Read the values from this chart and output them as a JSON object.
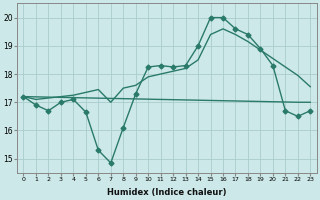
{
  "bg_color": "#cce8e8",
  "grid_color": "#aacccc",
  "line_color": "#2a7a6a",
  "xlabel": "Humidex (Indice chaleur)",
  "xlim": [
    -0.5,
    23.5
  ],
  "ylim": [
    14.5,
    20.5
  ],
  "yticks": [
    15,
    16,
    17,
    18,
    19,
    20
  ],
  "xticks": [
    0,
    1,
    2,
    3,
    4,
    5,
    6,
    7,
    8,
    9,
    10,
    11,
    12,
    13,
    14,
    15,
    16,
    17,
    18,
    19,
    20,
    21,
    22,
    23
  ],
  "series1_x": [
    0,
    1,
    2,
    3,
    4,
    5,
    6,
    7,
    8,
    9,
    10,
    11,
    12,
    13,
    14,
    15,
    16,
    17,
    18,
    19,
    20,
    21,
    22,
    23
  ],
  "series1_y": [
    17.2,
    16.9,
    16.7,
    17.0,
    17.1,
    16.65,
    15.3,
    14.85,
    16.1,
    17.3,
    18.25,
    18.3,
    18.25,
    18.3,
    19.0,
    20.0,
    20.0,
    19.6,
    19.4,
    18.9,
    18.3,
    16.7,
    16.5,
    16.7
  ],
  "series2_x": [
    0,
    1,
    2,
    3,
    4,
    5,
    6,
    7,
    8,
    9,
    10,
    11,
    12,
    13,
    14,
    15,
    16,
    17,
    18,
    19,
    20,
    21,
    22,
    23
  ],
  "series2_y": [
    17.2,
    17.1,
    17.15,
    17.2,
    17.25,
    17.35,
    17.45,
    17.0,
    17.5,
    17.6,
    17.9,
    18.0,
    18.1,
    18.2,
    18.5,
    19.4,
    19.6,
    19.4,
    19.15,
    18.85,
    18.55,
    18.25,
    17.95,
    17.55
  ],
  "series3_x": [
    0,
    22,
    23
  ],
  "series3_y": [
    17.2,
    17.0,
    17.0
  ],
  "marker_size": 2.5,
  "linewidth": 1.0
}
